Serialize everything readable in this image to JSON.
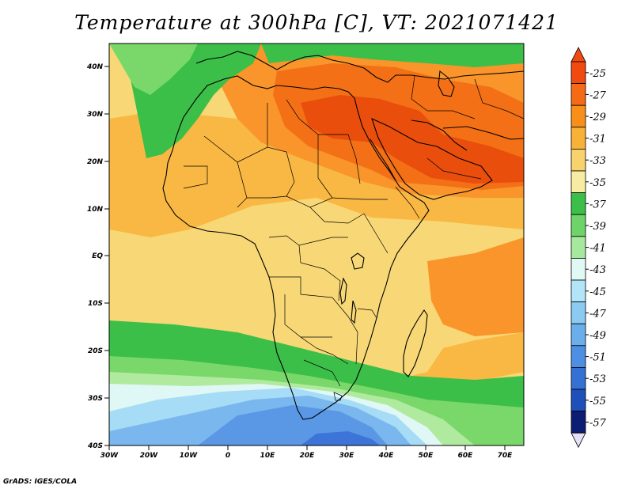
{
  "title": "Temperature at 300hPa [C], VT: 2021071421",
  "credit": "GrADS: IGES/COLA",
  "axes": {
    "lon_ticks": [
      "30W",
      "20W",
      "10W",
      "0",
      "10E",
      "20E",
      "30E",
      "40E",
      "50E",
      "60E",
      "70E"
    ],
    "lat_ticks": [
      "40N",
      "30N",
      "20N",
      "10N",
      "EQ",
      "10S",
      "20S",
      "30S",
      "40S"
    ]
  },
  "colorbar": {
    "levels": [
      "-25",
      "-27",
      "-29",
      "-31",
      "-33",
      "-35",
      "-37",
      "-39",
      "-41",
      "-43",
      "-45",
      "-47",
      "-49",
      "-51",
      "-53",
      "-55",
      "-57"
    ],
    "colors": [
      "#f04a10",
      "#f56a14",
      "#f98f19",
      "#f9b238",
      "#f8d26c",
      "#f8eca2",
      "#3cbf48",
      "#6ed46a",
      "#a6e89d",
      "#e1f9f5",
      "#b2e5f8",
      "#8ccaf1",
      "#6aaeec",
      "#4d90e3",
      "#3570d3",
      "#1f4fb8",
      "#0c1d73"
    ]
  },
  "map": {
    "region": "Africa and Middle East",
    "lon_range": [
      -30,
      75
    ],
    "lat_range": [
      -40,
      45
    ],
    "palette": {
      "orange_red": "#ea4e0c",
      "dark_orange": "#f37016",
      "orange": "#f9952a",
      "light_orange": "#f9b844",
      "yellow": "#f8d876",
      "pale_yellow": "#f8eca4",
      "green": "#3cbf48",
      "light_green": "#7ad86a",
      "pale_green": "#b0ea9f",
      "pale_blue": "#dff7f5",
      "light_blue": "#a6dcf6",
      "blue": "#7ab7ee",
      "mid_blue": "#5a98e6",
      "dark_blue": "#3c74d8"
    }
  }
}
